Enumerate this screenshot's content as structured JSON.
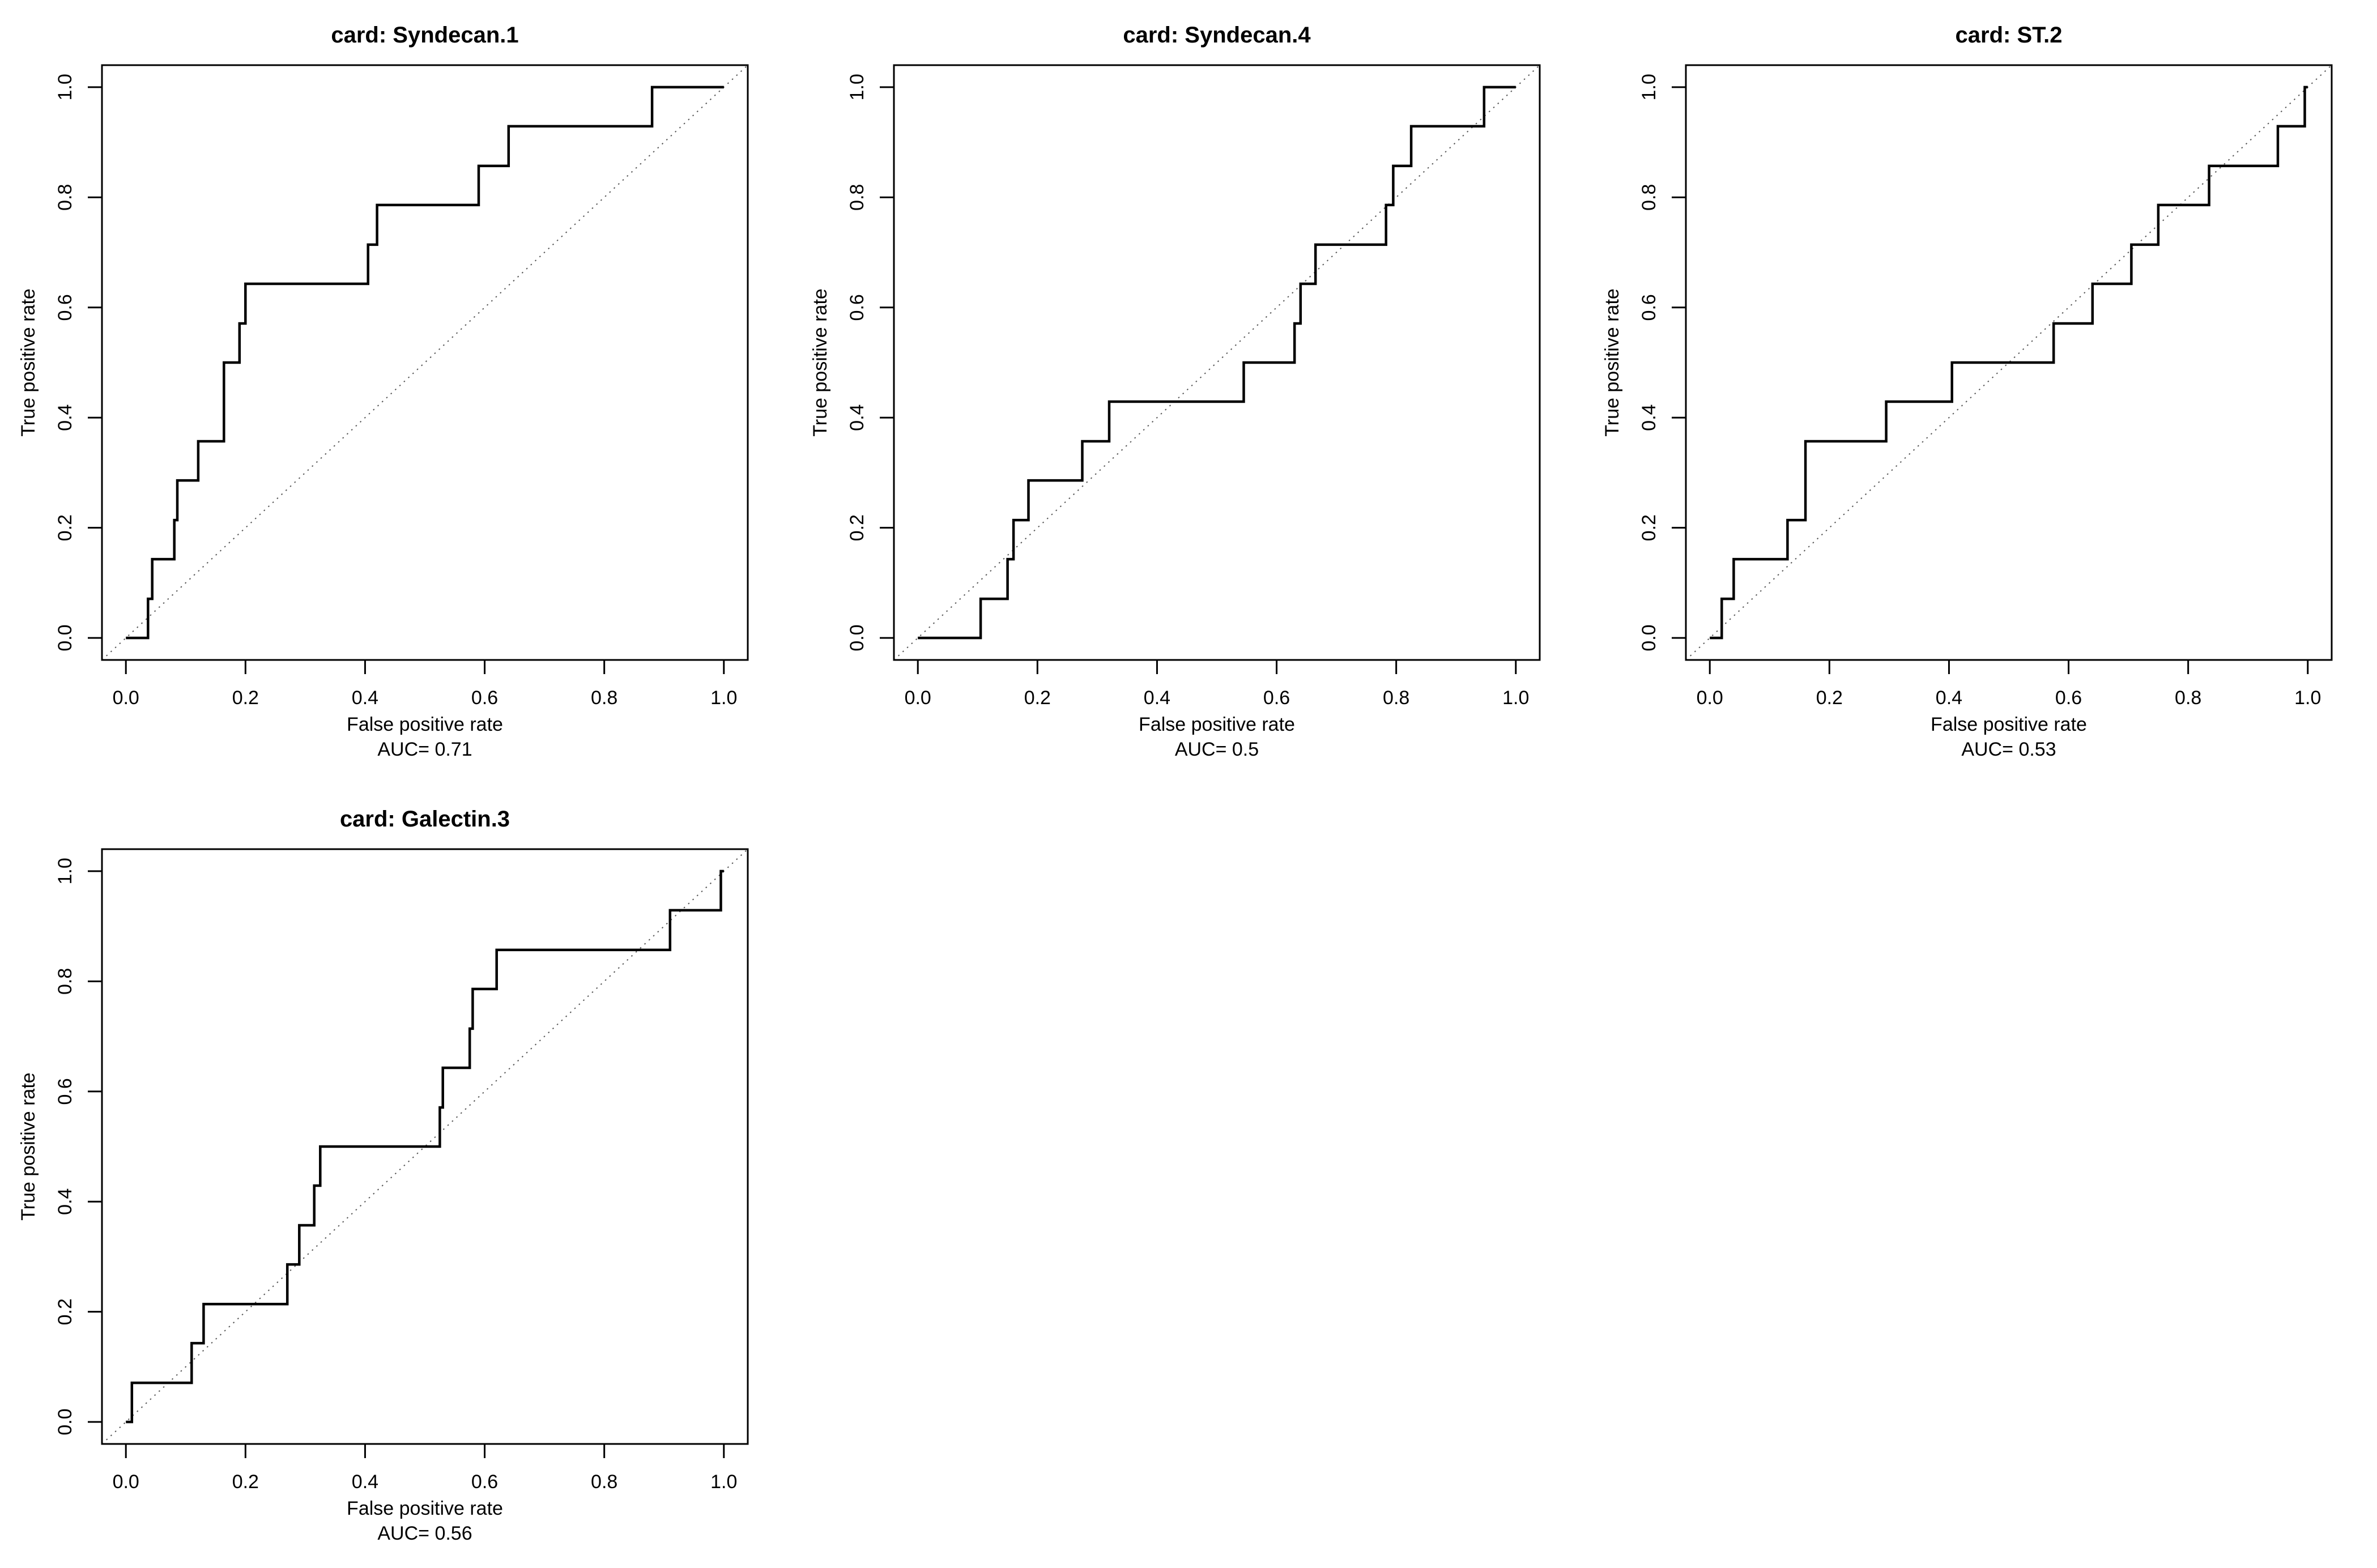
{
  "figure": {
    "background": "#ffffff",
    "text_color": "#000000",
    "curve_color": "#000000",
    "reference_line_color": "#555555",
    "axis": {
      "x_tick_labels": [
        "0.0",
        "0.2",
        "0.4",
        "0.6",
        "0.8",
        "1.0"
      ],
      "x_tick_values": [
        0,
        0.2,
        0.4,
        0.6,
        0.8,
        1.0
      ],
      "y_tick_labels": [
        "0.0",
        "0.2",
        "0.4",
        "0.6",
        "0.8",
        "1.0"
      ],
      "y_tick_values": [
        0,
        0.2,
        0.4,
        0.6,
        0.8,
        1.0
      ]
    }
  },
  "chart_data": [
    {
      "type": "line",
      "subtype": "roc-step-curve",
      "title": "card: Syndecan.1",
      "xlabel": "False positive rate",
      "ylabel": "True positive rate",
      "annotation": "AUC= 0.71",
      "auc": 0.71,
      "xlim": [
        0,
        1
      ],
      "ylim": [
        0,
        1
      ],
      "grid": false,
      "diagonal_reference": true,
      "points": [
        [
          0,
          0
        ],
        [
          0.037,
          0
        ],
        [
          0.037,
          0.071
        ],
        [
          0.044,
          0.071
        ],
        [
          0.044,
          0.143
        ],
        [
          0.081,
          0.143
        ],
        [
          0.081,
          0.214
        ],
        [
          0.086,
          0.214
        ],
        [
          0.086,
          0.286
        ],
        [
          0.121,
          0.286
        ],
        [
          0.121,
          0.357
        ],
        [
          0.164,
          0.357
        ],
        [
          0.164,
          0.5
        ],
        [
          0.19,
          0.5
        ],
        [
          0.19,
          0.571
        ],
        [
          0.2,
          0.571
        ],
        [
          0.2,
          0.643
        ],
        [
          0.405,
          0.643
        ],
        [
          0.405,
          0.714
        ],
        [
          0.42,
          0.714
        ],
        [
          0.42,
          0.786
        ],
        [
          0.59,
          0.786
        ],
        [
          0.59,
          0.857
        ],
        [
          0.64,
          0.857
        ],
        [
          0.64,
          0.929
        ],
        [
          0.88,
          0.929
        ],
        [
          0.88,
          1
        ],
        [
          1,
          1
        ]
      ]
    },
    {
      "type": "line",
      "subtype": "roc-step-curve",
      "title": "card: Syndecan.4",
      "xlabel": "False positive rate",
      "ylabel": "True positive rate",
      "annotation": "AUC= 0.5",
      "auc": 0.5,
      "xlim": [
        0,
        1
      ],
      "ylim": [
        0,
        1
      ],
      "grid": false,
      "diagonal_reference": true,
      "points": [
        [
          0,
          0
        ],
        [
          0.105,
          0
        ],
        [
          0.105,
          0.071
        ],
        [
          0.15,
          0.071
        ],
        [
          0.15,
          0.143
        ],
        [
          0.16,
          0.143
        ],
        [
          0.16,
          0.214
        ],
        [
          0.185,
          0.214
        ],
        [
          0.185,
          0.286
        ],
        [
          0.275,
          0.286
        ],
        [
          0.275,
          0.357
        ],
        [
          0.32,
          0.357
        ],
        [
          0.32,
          0.429
        ],
        [
          0.545,
          0.429
        ],
        [
          0.545,
          0.5
        ],
        [
          0.63,
          0.5
        ],
        [
          0.63,
          0.571
        ],
        [
          0.64,
          0.571
        ],
        [
          0.64,
          0.643
        ],
        [
          0.665,
          0.643
        ],
        [
          0.665,
          0.714
        ],
        [
          0.783,
          0.714
        ],
        [
          0.783,
          0.786
        ],
        [
          0.795,
          0.786
        ],
        [
          0.795,
          0.857
        ],
        [
          0.825,
          0.857
        ],
        [
          0.825,
          0.929
        ],
        [
          0.947,
          0.929
        ],
        [
          0.947,
          1
        ],
        [
          1,
          1
        ]
      ]
    },
    {
      "type": "line",
      "subtype": "roc-step-curve",
      "title": "card: ST.2",
      "xlabel": "False positive rate",
      "ylabel": "True positive rate",
      "annotation": "AUC= 0.53",
      "auc": 0.53,
      "xlim": [
        0,
        1
      ],
      "ylim": [
        0,
        1
      ],
      "grid": false,
      "diagonal_reference": true,
      "points": [
        [
          0,
          0
        ],
        [
          0.02,
          0
        ],
        [
          0.02,
          0.071
        ],
        [
          0.04,
          0.071
        ],
        [
          0.04,
          0.143
        ],
        [
          0.13,
          0.143
        ],
        [
          0.13,
          0.214
        ],
        [
          0.16,
          0.214
        ],
        [
          0.16,
          0.357
        ],
        [
          0.295,
          0.357
        ],
        [
          0.295,
          0.429
        ],
        [
          0.405,
          0.429
        ],
        [
          0.405,
          0.5
        ],
        [
          0.575,
          0.5
        ],
        [
          0.575,
          0.571
        ],
        [
          0.64,
          0.571
        ],
        [
          0.64,
          0.643
        ],
        [
          0.705,
          0.643
        ],
        [
          0.705,
          0.714
        ],
        [
          0.75,
          0.714
        ],
        [
          0.75,
          0.786
        ],
        [
          0.835,
          0.786
        ],
        [
          0.835,
          0.857
        ],
        [
          0.95,
          0.857
        ],
        [
          0.95,
          0.929
        ],
        [
          0.995,
          0.929
        ],
        [
          0.995,
          1
        ],
        [
          1,
          1
        ]
      ]
    },
    {
      "type": "line",
      "subtype": "roc-step-curve",
      "title": "card: Galectin.3",
      "xlabel": "False positive rate",
      "ylabel": "True positive rate",
      "annotation": "AUC= 0.56",
      "auc": 0.56,
      "xlim": [
        0,
        1
      ],
      "ylim": [
        0,
        1
      ],
      "grid": false,
      "diagonal_reference": true,
      "points": [
        [
          0,
          0
        ],
        [
          0.01,
          0
        ],
        [
          0.01,
          0.071
        ],
        [
          0.11,
          0.071
        ],
        [
          0.11,
          0.143
        ],
        [
          0.13,
          0.143
        ],
        [
          0.13,
          0.214
        ],
        [
          0.27,
          0.214
        ],
        [
          0.27,
          0.286
        ],
        [
          0.29,
          0.286
        ],
        [
          0.29,
          0.357
        ],
        [
          0.315,
          0.357
        ],
        [
          0.315,
          0.429
        ],
        [
          0.325,
          0.429
        ],
        [
          0.325,
          0.5
        ],
        [
          0.525,
          0.5
        ],
        [
          0.525,
          0.571
        ],
        [
          0.53,
          0.571
        ],
        [
          0.53,
          0.643
        ],
        [
          0.575,
          0.643
        ],
        [
          0.575,
          0.714
        ],
        [
          0.58,
          0.714
        ],
        [
          0.58,
          0.786
        ],
        [
          0.62,
          0.786
        ],
        [
          0.62,
          0.857
        ],
        [
          0.91,
          0.857
        ],
        [
          0.91,
          0.929
        ],
        [
          0.995,
          0.929
        ],
        [
          0.995,
          1
        ],
        [
          1,
          1
        ]
      ]
    }
  ]
}
